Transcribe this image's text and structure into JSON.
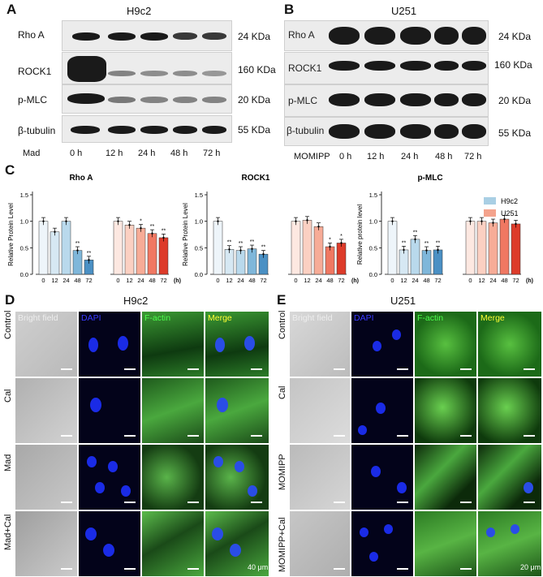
{
  "panelA": {
    "letter": "A",
    "title": "H9c2",
    "rows": [
      "Rho A",
      "ROCK1",
      "p-MLC",
      "β-tubulin"
    ],
    "kda": [
      "24 KDa",
      "160 KDa",
      "20 KDa",
      "55 KDa"
    ],
    "treatment": "Mad",
    "times": [
      "0 h",
      "12 h",
      "24 h",
      "48 h",
      "72 h"
    ]
  },
  "panelB": {
    "letter": "B",
    "title": "U251",
    "rows": [
      "Rho A",
      "ROCK1",
      "p-MLC",
      "β-tubulin"
    ],
    "kda": [
      "24 KDa",
      "160 KDa",
      "20 KDa",
      "55 KDa"
    ],
    "treatment": "MOMIPP",
    "times": [
      "0 h",
      "12 h",
      "24 h",
      "48 h",
      "72 h"
    ]
  },
  "panelC": {
    "letter": "C"
  },
  "chart_data": [
    {
      "type": "bar",
      "title": "Rho A",
      "ylabel": "Relative Protein Level",
      "ylim": [
        0,
        1.5
      ],
      "yticks": [
        0.0,
        0.5,
        1.0,
        1.5
      ],
      "xunit": "(h)",
      "categories": [
        "0",
        "12",
        "24",
        "48",
        "72"
      ],
      "series": [
        {
          "name": "H9c2",
          "values": [
            1.0,
            0.8,
            1.0,
            0.45,
            0.27
          ],
          "sig": [
            "",
            "",
            "",
            "**",
            "**"
          ]
        },
        {
          "name": "U251",
          "values": [
            1.0,
            0.93,
            0.87,
            0.77,
            0.69
          ],
          "sig": [
            "",
            "",
            "*",
            "**",
            "**"
          ]
        }
      ]
    },
    {
      "type": "bar",
      "title": "ROCK1",
      "ylabel": "Relative Protein Level",
      "ylim": [
        0,
        1.5
      ],
      "yticks": [
        0.0,
        0.5,
        1.0,
        1.5
      ],
      "xunit": "(h)",
      "categories": [
        "0",
        "12",
        "24",
        "48",
        "72"
      ],
      "series": [
        {
          "name": "H9c2",
          "values": [
            1.0,
            0.47,
            0.45,
            0.48,
            0.38
          ],
          "sig": [
            "",
            "**",
            "**",
            "**",
            "**"
          ]
        },
        {
          "name": "U251",
          "values": [
            1.0,
            1.02,
            0.9,
            0.52,
            0.59
          ],
          "sig": [
            "",
            "",
            "",
            "*",
            "*"
          ]
        }
      ]
    },
    {
      "type": "bar",
      "title": "p-MLC",
      "ylabel": "Relative protein level",
      "ylim": [
        0,
        1.5
      ],
      "yticks": [
        0.0,
        0.5,
        1.0,
        1.5
      ],
      "xunit": "(h)",
      "categories": [
        "0",
        "12",
        "24",
        "48",
        "72"
      ],
      "series": [
        {
          "name": "H9c2",
          "values": [
            1.0,
            0.46,
            0.66,
            0.45,
            0.46
          ],
          "sig": [
            "",
            "**",
            "**",
            "**",
            "**"
          ]
        },
        {
          "name": "U251",
          "values": [
            1.0,
            1.0,
            0.97,
            1.04,
            0.95
          ],
          "sig": [
            "",
            "",
            "",
            "",
            ""
          ]
        }
      ]
    }
  ],
  "legend": {
    "h9c2": "H9c2",
    "u251": "U251",
    "h9c2_color": "#a9cfe4",
    "u251_color": "#f4a38d"
  },
  "panelD": {
    "letter": "D",
    "title": "H9c2",
    "columns": [
      "Bright field",
      "DAPI",
      "F-actin",
      "Merge"
    ],
    "rows": [
      "Control",
      "Cal",
      "Mad",
      "Mad+Cal"
    ],
    "scale": "40 μm"
  },
  "panelE": {
    "letter": "E",
    "title": "U251",
    "columns": [
      "Bright field",
      "DAPI",
      "F-actin",
      "Merge"
    ],
    "rows": [
      "Control",
      "Cal",
      "MOMIPP",
      "MOMIPP+Cal"
    ],
    "scale": "20 μm"
  }
}
